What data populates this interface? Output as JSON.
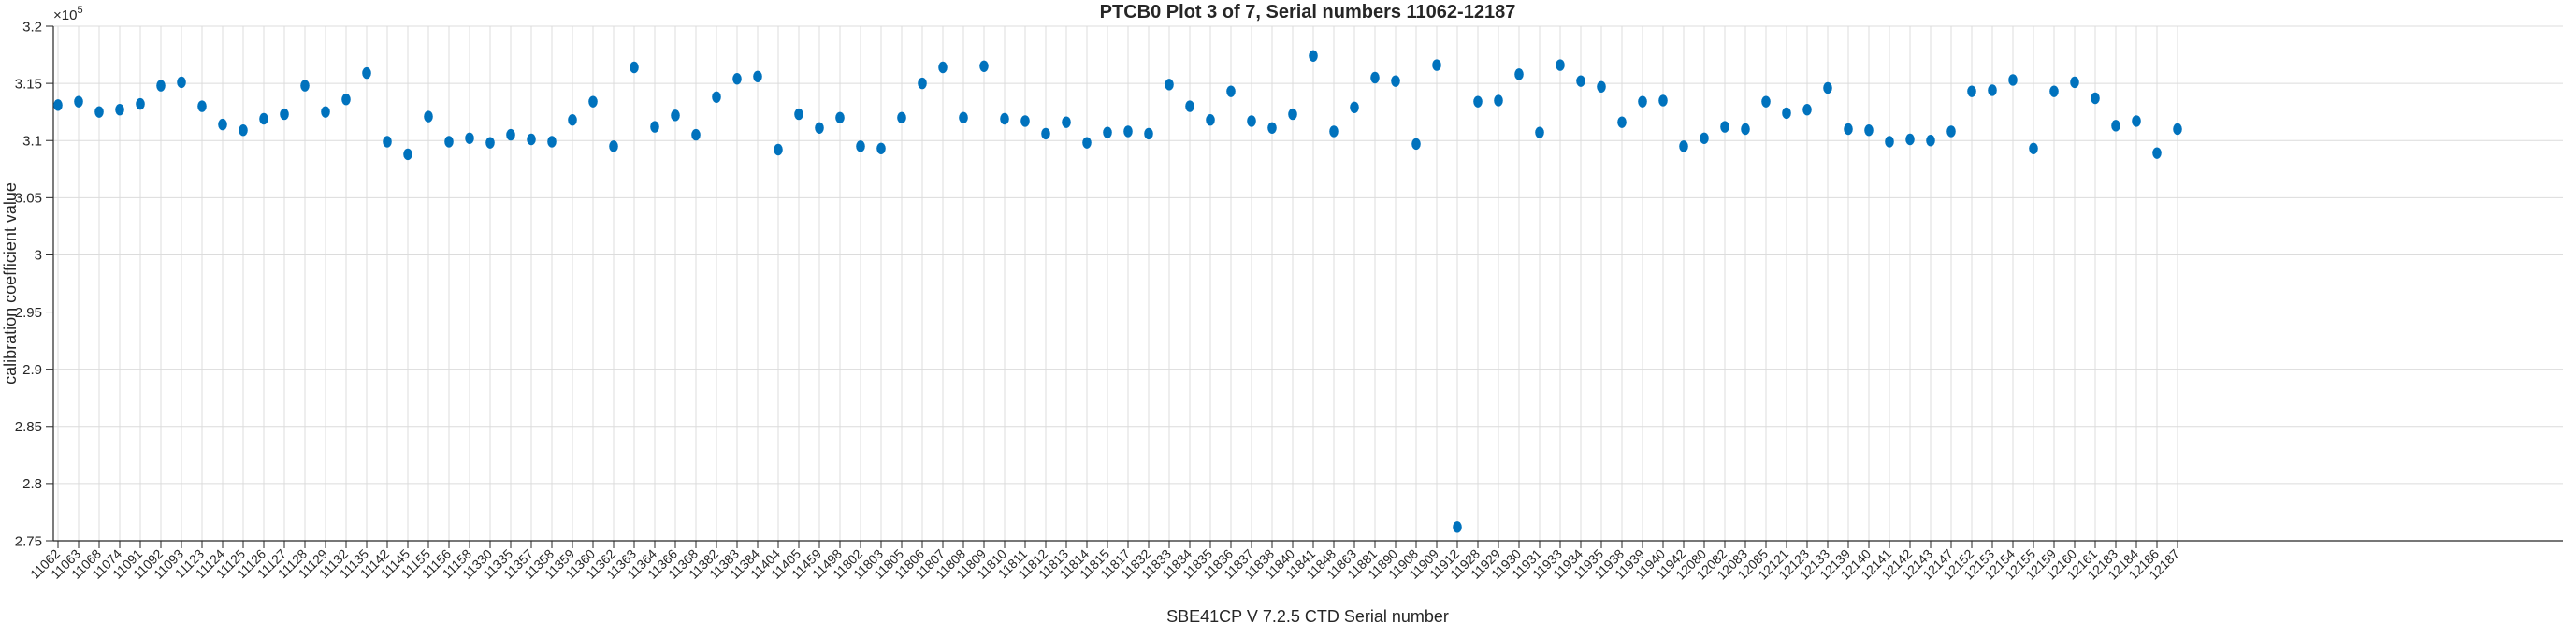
{
  "chart_data": {
    "type": "scatter",
    "title": "PTCB0 Plot 3 of 7, Serial numbers 11062-12187",
    "xlabel": "SBE41CP V 7.2.5 CTD Serial number",
    "ylabel": "calibration coefficient value",
    "y_exponent": {
      "base": "×10",
      "power": "5"
    },
    "ylim": [
      2.75,
      3.2
    ],
    "y_scale_factor": 100000,
    "yticks": [
      "2.75",
      "2.8",
      "2.85",
      "2.9",
      "2.95",
      "3",
      "3.05",
      "3.1",
      "3.15",
      "3.2"
    ],
    "grid": true,
    "legend": "none",
    "marker_color": "#0072BD",
    "axis_color": "#262626",
    "grid_color": "#dcdcdc",
    "categories": [
      "11062",
      "11063",
      "11068",
      "11074",
      "11091",
      "11092",
      "11093",
      "11123",
      "11124",
      "11125",
      "11126",
      "11127",
      "11128",
      "11129",
      "11132",
      "11135",
      "11142",
      "11145",
      "11155",
      "11156",
      "11158",
      "11330",
      "11335",
      "11357",
      "11358",
      "11359",
      "11360",
      "11362",
      "11363",
      "11364",
      "11366",
      "11368",
      "11382",
      "11383",
      "11384",
      "11404",
      "11405",
      "11459",
      "11498",
      "11802",
      "11803",
      "11805",
      "11806",
      "11807",
      "11808",
      "11809",
      "11810",
      "11811",
      "11812",
      "11813",
      "11814",
      "11815",
      "11817",
      "11832",
      "11833",
      "11834",
      "11835",
      "11836",
      "11837",
      "11838",
      "11840",
      "11841",
      "11848",
      "11863",
      "11881",
      "11890",
      "11908",
      "11909",
      "11912",
      "11928",
      "11929",
      "11930",
      "11931",
      "11933",
      "11934",
      "11935",
      "11938",
      "11939",
      "11940",
      "11942",
      "12080",
      "12082",
      "12083",
      "12085",
      "12121",
      "12123",
      "12133",
      "12139",
      "12140",
      "12141",
      "12142",
      "12143",
      "12147",
      "12152",
      "12153",
      "12154",
      "12155",
      "12159",
      "12160",
      "12161",
      "12183",
      "12184",
      "12186",
      "12187"
    ],
    "values": [
      3.131,
      3.134,
      3.125,
      3.127,
      3.132,
      3.148,
      3.151,
      3.13,
      3.114,
      3.109,
      3.119,
      3.123,
      3.148,
      3.125,
      3.136,
      3.159,
      3.099,
      3.088,
      3.121,
      3.099,
      3.102,
      3.098,
      3.105,
      3.101,
      3.099,
      3.118,
      3.134,
      3.095,
      3.164,
      3.112,
      3.122,
      3.105,
      3.138,
      3.154,
      3.156,
      3.092,
      3.123,
      3.111,
      3.12,
      3.095,
      3.093,
      3.12,
      3.15,
      3.164,
      3.12,
      3.165,
      3.119,
      3.117,
      3.106,
      3.116,
      3.098,
      3.107,
      3.108,
      3.106,
      3.149,
      3.13,
      3.118,
      3.143,
      3.117,
      3.111,
      3.123,
      3.174,
      3.108,
      3.129,
      3.155,
      3.152,
      3.097,
      3.166,
      2.762,
      3.134,
      3.135,
      3.158,
      3.107,
      3.166,
      3.152,
      3.147,
      3.116,
      3.134,
      3.135,
      3.095,
      3.102,
      3.112,
      3.11,
      3.134,
      3.124,
      3.127,
      3.146,
      3.11,
      3.109,
      3.099,
      3.101,
      3.1,
      3.108,
      3.143,
      3.144,
      3.153,
      3.093,
      3.143,
      3.151,
      3.137,
      3.113,
      3.117,
      3.089,
      3.11
    ]
  }
}
